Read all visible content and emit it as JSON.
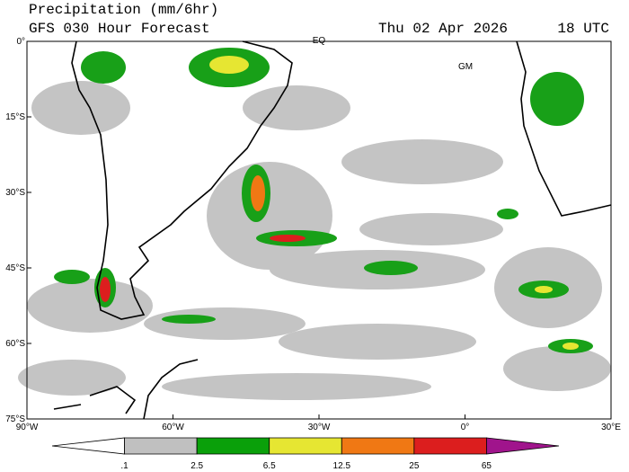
{
  "header": {
    "title": "Precipitation (mm/6hr)",
    "subtitle": "GFS 030 Hour Forecast",
    "date": "Thu 02 Apr 2026",
    "time": "18 UTC"
  },
  "map": {
    "lat_labels": [
      "0°",
      "15°S",
      "30°S",
      "45°S",
      "60°S",
      "75°S"
    ],
    "lon_labels": [
      "90°W",
      "60°W",
      "30°W",
      "0°",
      "30°E"
    ],
    "annotations": [
      "EQ",
      "GM"
    ]
  },
  "colorbar": {
    "labels": [
      ".1",
      "2.5",
      "6.5",
      "12.5",
      "25",
      "65"
    ],
    "colors": [
      "#ffffff",
      "#c0c0c0",
      "#0aa00a",
      "#e6e632",
      "#f07814",
      "#dc1e1e",
      "#a0148c"
    ]
  }
}
